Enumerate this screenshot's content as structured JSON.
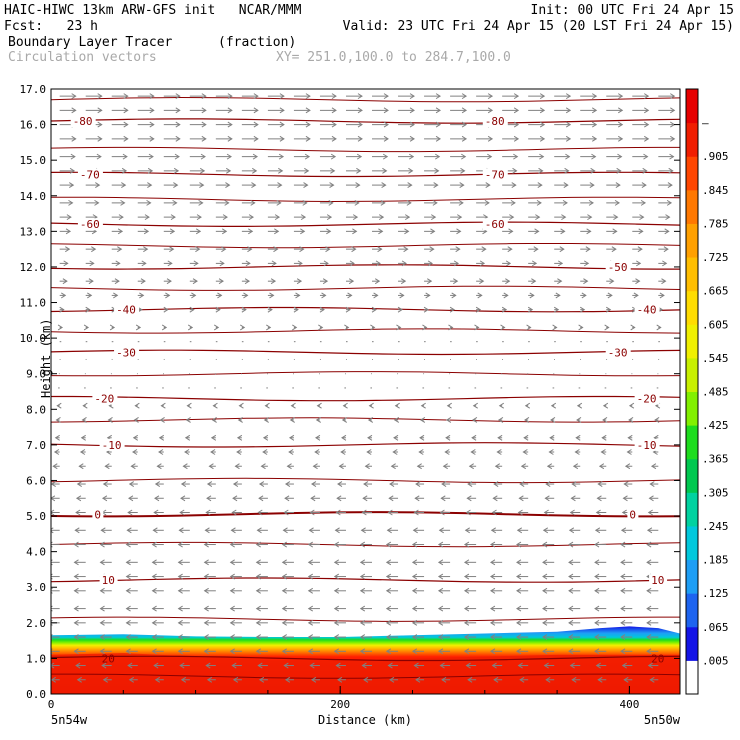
{
  "header": {
    "line1_left": "HAIC-HIWC 13km ARW-GFS init   NCAR/MMM",
    "line1_right": "Init: 00 UTC Fri 24 Apr 15",
    "line2_left": "Fcst:   23 h",
    "line2_right": "Valid: 23 UTC Fri 24 Apr 15 (20 LST Fri 24 Apr 15)",
    "field_name": "Boundary Layer Tracer",
    "field_units": "(fraction)",
    "vector_label": "Circulation vectors",
    "cross_section": "XY= 251.0,100.0 to 284.7,100.0"
  },
  "chart_data": {
    "type": "heatmap",
    "xlabel": "Distance (km)",
    "ylabel": "Height (km)",
    "xlim": [
      0,
      435
    ],
    "ylim": [
      0,
      17
    ],
    "x_ticks": [
      0,
      200,
      400
    ],
    "y_ticks": [
      0.0,
      1.0,
      2.0,
      3.0,
      4.0,
      5.0,
      6.0,
      7.0,
      8.0,
      9.0,
      10.0,
      11.0,
      12.0,
      13.0,
      14.0,
      15.0,
      16.0,
      17.0
    ],
    "x_endpoint_labels": {
      "left": "5n54w",
      "right": "5n50w"
    },
    "colorbar": {
      "labels": [
        ".005",
        ".065",
        ".125",
        ".185",
        ".245",
        ".305",
        ".365",
        ".425",
        ".485",
        ".545",
        ".605",
        ".665",
        ".725",
        ".785",
        ".845",
        ".905",
        "–"
      ],
      "colors": [
        "#ffffff",
        "#1414e6",
        "#1e64f0",
        "#1e9ef5",
        "#00c8dc",
        "#00d2a0",
        "#00c850",
        "#1edc1e",
        "#82f000",
        "#c8f000",
        "#f0f000",
        "#ffdc00",
        "#ffbe00",
        "#ffa000",
        "#ff7800",
        "#ff4600",
        "#f01e00",
        "#e60000"
      ]
    },
    "tracer_field": {
      "x": [
        0,
        50,
        100,
        150,
        200,
        250,
        300,
        350,
        380,
        400,
        420,
        435
      ],
      "top_height": [
        1.65,
        1.68,
        1.62,
        1.6,
        1.6,
        1.65,
        1.7,
        1.75,
        1.85,
        1.9,
        1.85,
        1.7
      ],
      "red_top_height": [
        1.1,
        1.15,
        1.05,
        0.95,
        0.95,
        1.0,
        1.05,
        1.1,
        1.1,
        1.1,
        1.1,
        1.1
      ]
    },
    "temperature_contours": {
      "color": "#8b0000",
      "levels": [
        -80,
        -70,
        -60,
        -50,
        -40,
        -30,
        -20,
        -10,
        0,
        10,
        20
      ],
      "lines": [
        {
          "level": -80,
          "height": 16.1,
          "labels": [
            {
              "x": 15,
              "text": "-80"
            },
            {
              "x": 300,
              "text": "-80"
            }
          ]
        },
        {
          "level": -70,
          "height": 14.6,
          "labels": [
            {
              "x": 20,
              "text": "-70"
            },
            {
              "x": 300,
              "text": "-70"
            }
          ]
        },
        {
          "level": -60,
          "height": 13.2,
          "labels": [
            {
              "x": 20,
              "text": "-60"
            },
            {
              "x": 300,
              "text": "-60"
            }
          ]
        },
        {
          "level": -50,
          "height": 12.0,
          "labels": [
            {
              "x": 385,
              "text": "-50"
            }
          ]
        },
        {
          "level": -40,
          "height": 10.8,
          "labels": [
            {
              "x": 45,
              "text": "-40"
            },
            {
              "x": 405,
              "text": "-40"
            }
          ]
        },
        {
          "level": -30,
          "height": 9.6,
          "labels": [
            {
              "x": 45,
              "text": "-30"
            },
            {
              "x": 385,
              "text": "-30"
            }
          ]
        },
        {
          "level": -20,
          "height": 8.3,
          "labels": [
            {
              "x": 30,
              "text": "-20"
            },
            {
              "x": 405,
              "text": "-20"
            }
          ]
        },
        {
          "level": -10,
          "height": 7.0,
          "labels": [
            {
              "x": 35,
              "text": "-10"
            },
            {
              "x": 405,
              "text": "-10"
            }
          ]
        },
        {
          "level": 0,
          "height": 5.05,
          "labels": [
            {
              "x": 30,
              "text": "0"
            },
            {
              "x": 400,
              "text": "0"
            }
          ]
        },
        {
          "level": 10,
          "height": 3.2,
          "labels": [
            {
              "x": 35,
              "text": "10"
            },
            {
              "x": 415,
              "text": "10"
            }
          ]
        },
        {
          "level": 20,
          "height": 1.0,
          "labels": [
            {
              "x": 35,
              "text": "20"
            },
            {
              "x": 415,
              "text": "20"
            }
          ]
        }
      ],
      "other_isentrope_heights": [
        16.7,
        15.3,
        13.9,
        12.6,
        11.4,
        10.2,
        9.0,
        7.7,
        6.0,
        4.2,
        2.1,
        0.5
      ]
    },
    "vectors": {
      "color": "#808080",
      "rows": [
        {
          "height": 16.8,
          "u": 1.0
        },
        {
          "height": 16.4,
          "u": 1.0
        },
        {
          "height": 16.0,
          "u": 1.0
        },
        {
          "height": 15.6,
          "u": 1.0
        },
        {
          "height": 15.1,
          "u": 0.95
        },
        {
          "height": 14.7,
          "u": 0.9
        },
        {
          "height": 14.3,
          "u": 0.85
        },
        {
          "height": 13.8,
          "u": 0.8
        },
        {
          "height": 13.4,
          "u": 0.7
        },
        {
          "height": 13.0,
          "u": 0.65
        },
        {
          "height": 12.5,
          "u": 0.6
        },
        {
          "height": 12.1,
          "u": 0.5
        },
        {
          "height": 11.6,
          "u": 0.45
        },
        {
          "height": 11.2,
          "u": 0.35
        },
        {
          "height": 10.8,
          "u": 0.25
        },
        {
          "height": 10.3,
          "u": 0.15
        },
        {
          "height": 9.9,
          "u": 0.1
        },
        {
          "height": 9.4,
          "u": 0.05
        },
        {
          "height": 9.0,
          "u": -0.05
        },
        {
          "height": 8.6,
          "u": -0.1
        },
        {
          "height": 8.1,
          "u": -0.15
        },
        {
          "height": 7.7,
          "u": -0.2
        },
        {
          "height": 7.2,
          "u": -0.25
        },
        {
          "height": 6.8,
          "u": -0.3
        },
        {
          "height": 6.4,
          "u": -0.4
        },
        {
          "height": 5.9,
          "u": -0.5
        },
        {
          "height": 5.5,
          "u": -0.55
        },
        {
          "height": 5.1,
          "u": -0.6
        },
        {
          "height": 4.6,
          "u": -0.65
        },
        {
          "height": 4.2,
          "u": -0.7
        },
        {
          "height": 3.7,
          "u": -0.7
        },
        {
          "height": 3.3,
          "u": -0.7
        },
        {
          "height": 2.9,
          "u": -0.7
        },
        {
          "height": 2.4,
          "u": -0.7
        },
        {
          "height": 2.0,
          "u": -0.7
        },
        {
          "height": 1.6,
          "u": -0.7
        },
        {
          "height": 1.2,
          "u": -0.7
        },
        {
          "height": 0.8,
          "u": -0.6
        },
        {
          "height": 0.4,
          "u": -0.5
        }
      ],
      "columns_km": [
        6,
        24,
        42,
        60,
        78,
        96,
        114,
        132,
        150,
        168,
        186,
        204,
        222,
        240,
        258,
        276,
        294,
        312,
        330,
        348,
        366,
        384,
        402,
        420
      ]
    },
    "grid": false,
    "legend": "colorbar-right"
  }
}
